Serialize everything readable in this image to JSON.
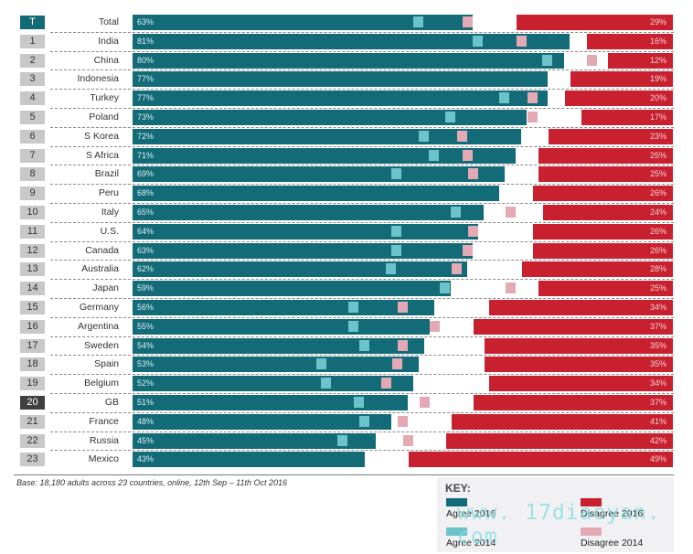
{
  "chart_data": {
    "type": "bar",
    "title": "",
    "xlabel": "",
    "ylabel": "",
    "xlim": [
      0,
      100
    ],
    "legend_position": "bottom-right",
    "rows": [
      {
        "rank": "T",
        "country": "Total",
        "agree_2016": 63,
        "disagree_2016": 29,
        "agree_2014": 53,
        "disagree_2014": 38
      },
      {
        "rank": "1",
        "country": "India",
        "agree_2016": 81,
        "disagree_2016": 16,
        "agree_2014": 64,
        "disagree_2014": 28
      },
      {
        "rank": "2",
        "country": "China",
        "agree_2016": 80,
        "disagree_2016": 12,
        "agree_2014": 77,
        "disagree_2014": 15
      },
      {
        "rank": "3",
        "country": "Indonesia",
        "agree_2016": 77,
        "disagree_2016": 19,
        "agree_2014": null,
        "disagree_2014": null
      },
      {
        "rank": "4",
        "country": "Turkey",
        "agree_2016": 77,
        "disagree_2016": 20,
        "agree_2014": 69,
        "disagree_2014": 26
      },
      {
        "rank": "5",
        "country": "Poland",
        "agree_2016": 73,
        "disagree_2016": 17,
        "agree_2014": 59,
        "disagree_2014": 26
      },
      {
        "rank": "6",
        "country": "S Korea",
        "agree_2016": 72,
        "disagree_2016": 23,
        "agree_2014": 54,
        "disagree_2014": 39
      },
      {
        "rank": "7",
        "country": "S Africa",
        "agree_2016": 71,
        "disagree_2016": 25,
        "agree_2014": 56,
        "disagree_2014": 38
      },
      {
        "rank": "8",
        "country": "Brazil",
        "agree_2016": 69,
        "disagree_2016": 25,
        "agree_2014": 49,
        "disagree_2014": 37
      },
      {
        "rank": "9",
        "country": "Peru",
        "agree_2016": 68,
        "disagree_2016": 26,
        "agree_2014": null,
        "disagree_2014": null
      },
      {
        "rank": "10",
        "country": "Italy",
        "agree_2016": 65,
        "disagree_2016": 24,
        "agree_2014": 60,
        "disagree_2014": 30
      },
      {
        "rank": "11",
        "country": "U.S.",
        "agree_2016": 64,
        "disagree_2016": 26,
        "agree_2014": 49,
        "disagree_2014": 37
      },
      {
        "rank": "12",
        "country": "Canada",
        "agree_2016": 63,
        "disagree_2016": 26,
        "agree_2014": 49,
        "disagree_2014": 38
      },
      {
        "rank": "13",
        "country": "Australia",
        "agree_2016": 62,
        "disagree_2016": 28,
        "agree_2014": 48,
        "disagree_2014": 40
      },
      {
        "rank": "14",
        "country": "Japan",
        "agree_2016": 59,
        "disagree_2016": 25,
        "agree_2014": 58,
        "disagree_2014": 30
      },
      {
        "rank": "15",
        "country": "Germany",
        "agree_2016": 56,
        "disagree_2016": 34,
        "agree_2014": 41,
        "disagree_2014": 50
      },
      {
        "rank": "16",
        "country": "Argentina",
        "agree_2016": 55,
        "disagree_2016": 37,
        "agree_2014": 41,
        "disagree_2014": 44
      },
      {
        "rank": "17",
        "country": "Sweden",
        "agree_2016": 54,
        "disagree_2016": 35,
        "agree_2014": 43,
        "disagree_2014": 50
      },
      {
        "rank": "18",
        "country": "Spain",
        "agree_2016": 53,
        "disagree_2016": 35,
        "agree_2014": 35,
        "disagree_2014": 51
      },
      {
        "rank": "19",
        "country": "Belgium",
        "agree_2016": 52,
        "disagree_2016": 34,
        "agree_2014": 36,
        "disagree_2014": 53
      },
      {
        "rank": "20",
        "country": "GB",
        "agree_2016": 51,
        "disagree_2016": 37,
        "agree_2014": 42,
        "disagree_2014": 46
      },
      {
        "rank": "21",
        "country": "France",
        "agree_2016": 48,
        "disagree_2016": 41,
        "agree_2014": 43,
        "disagree_2014": 50
      },
      {
        "rank": "22",
        "country": "Russia",
        "agree_2016": 45,
        "disagree_2016": 42,
        "agree_2014": 39,
        "disagree_2014": 49
      },
      {
        "rank": "23",
        "country": "Mexico",
        "agree_2016": 43,
        "disagree_2016": 49,
        "agree_2014": null,
        "disagree_2014": null
      }
    ],
    "highlight_ranks": {
      "total": "T",
      "gb": "20"
    },
    "base_note": "Base: 18,180 adults across 23 countries, online, 12th Sep – 11th Oct 2016",
    "legend": {
      "title": "KEY:",
      "items": [
        {
          "label": "Agree 2016",
          "color": "#136b78"
        },
        {
          "label": "Disagree 2016",
          "color": "#c8202f"
        },
        {
          "label": "Agree 2014",
          "color": "#6cc3c9"
        },
        {
          "label": "Disagree 2014",
          "color": "#e3aab6"
        }
      ]
    },
    "value_suffix": "%"
  },
  "colors": {
    "agree_2016": "#136b78",
    "disagree_2016": "#c8202f",
    "agree_2014": "#6cc3c9",
    "disagree_2014": "#e3aab6"
  },
  "watermark": "www. 17diaoyan. com"
}
